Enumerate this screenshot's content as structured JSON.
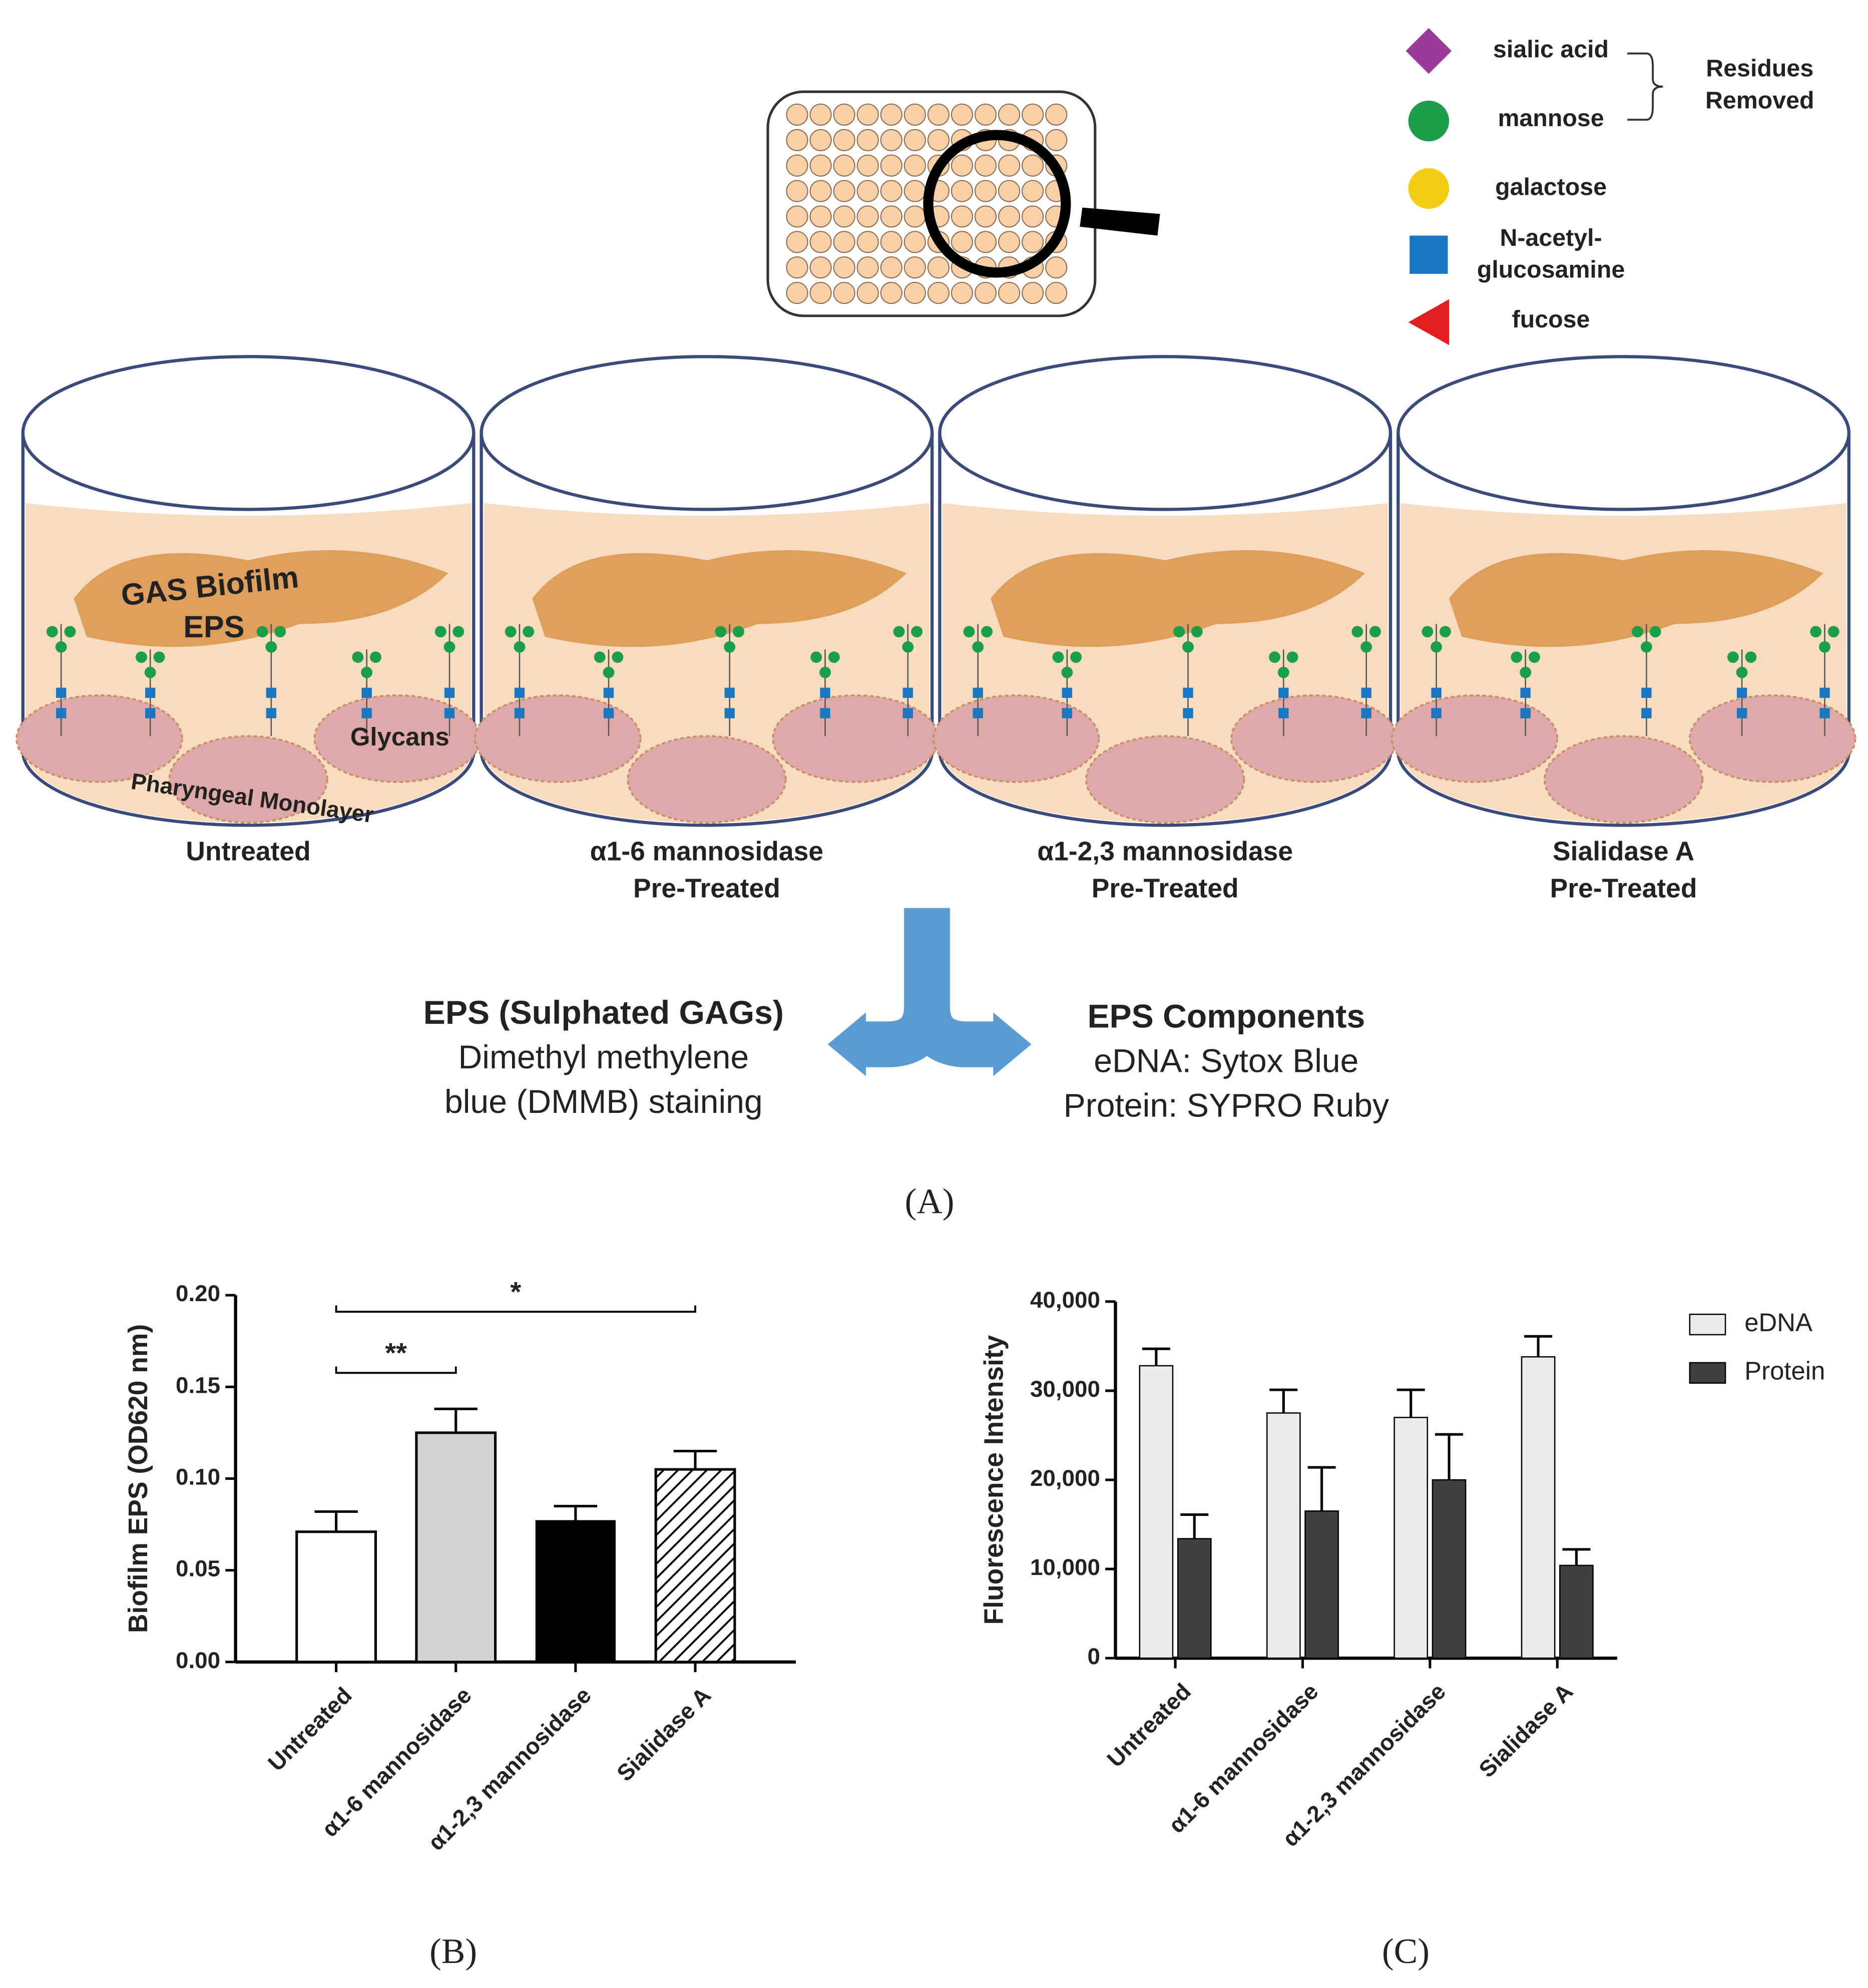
{
  "panel_a": {
    "legend": [
      [
        "sialic acid"
      ],
      [
        "mannose"
      ],
      [
        "galactose"
      ],
      [
        "N-acetyl-",
        "glucosamine"
      ],
      [
        "fucose"
      ]
    ],
    "bracket": [
      "Residues",
      "Removed"
    ],
    "wells": [
      [
        "Untreated"
      ],
      [
        "α1-6 mannosidase",
        "Pre-Treated"
      ],
      [
        "α1-2,3 mannosidase",
        "Pre-Treated"
      ],
      [
        "Sialidase A",
        "Pre-Treated"
      ]
    ],
    "well_labels": {
      "biofilm": "GAS Biofilm",
      "eps": "EPS",
      "glycans": "Glycans",
      "monolayer": "Pharyngeal Monolayer"
    },
    "left_box": [
      "EPS (Sulphated GAGs)",
      "Dimethyl methylene",
      "blue (DMMB) staining"
    ],
    "right_box": [
      "EPS Components",
      "eDNA: Sytox Blue",
      "Protein: SYPRO Ruby"
    ],
    "label": "(A)"
  },
  "chart_data": [
    {
      "type": "bar",
      "panel_label": "(B)",
      "y_label": "Biofilm  EPS (OD620 nm)",
      "categories": [
        "Untreated",
        "α1-6 mannosidase",
        "α1-2,3 mannosidase",
        "Sialidase A"
      ],
      "values": [
        0.071,
        0.125,
        0.077,
        0.105
      ],
      "errors": [
        0.011,
        0.013,
        0.008,
        0.01
      ],
      "fills": [
        "#ffffff",
        "#d3d3d3",
        "#000000",
        "hatch"
      ],
      "annotations": [
        "**",
        "*"
      ],
      "ylim": [
        0,
        0.2
      ],
      "yticks": [
        {
          "value": 0,
          "label": "0.00"
        },
        {
          "value": 0.05,
          "label": "0.05"
        },
        {
          "value": 0.1,
          "label": "0.10"
        },
        {
          "value": 0.15,
          "label": "0.15"
        },
        {
          "value": 0.2,
          "label": "0.20"
        }
      ],
      "grid": false
    },
    {
      "type": "bar",
      "panel_label": "(C)",
      "y_label": "Fluorescence Intensity",
      "categories": [
        "Untreated",
        "α1-6 mannosidase",
        "α1-2,3 mannosidase",
        "Sialidase A"
      ],
      "series": [
        {
          "name": "eDNA",
          "color": "#ebebeb",
          "values": [
            32800,
            27500,
            27000,
            33800
          ],
          "errors": [
            1900,
            2600,
            3100,
            2300
          ]
        },
        {
          "name": "Protein",
          "color": "#404040",
          "values": [
            13400,
            16500,
            20000,
            10400
          ],
          "errors": [
            2700,
            4900,
            5100,
            1800
          ]
        }
      ],
      "ylim": [
        0,
        40000
      ],
      "yticks": [
        0,
        {
          "value": 10000,
          "label": "10,000"
        },
        {
          "value": 20000,
          "label": "20,000"
        },
        {
          "value": 30000,
          "label": "30,000"
        },
        {
          "value": 40000,
          "label": "40,000"
        }
      ],
      "legend": "upper right",
      "grid": false
    }
  ]
}
